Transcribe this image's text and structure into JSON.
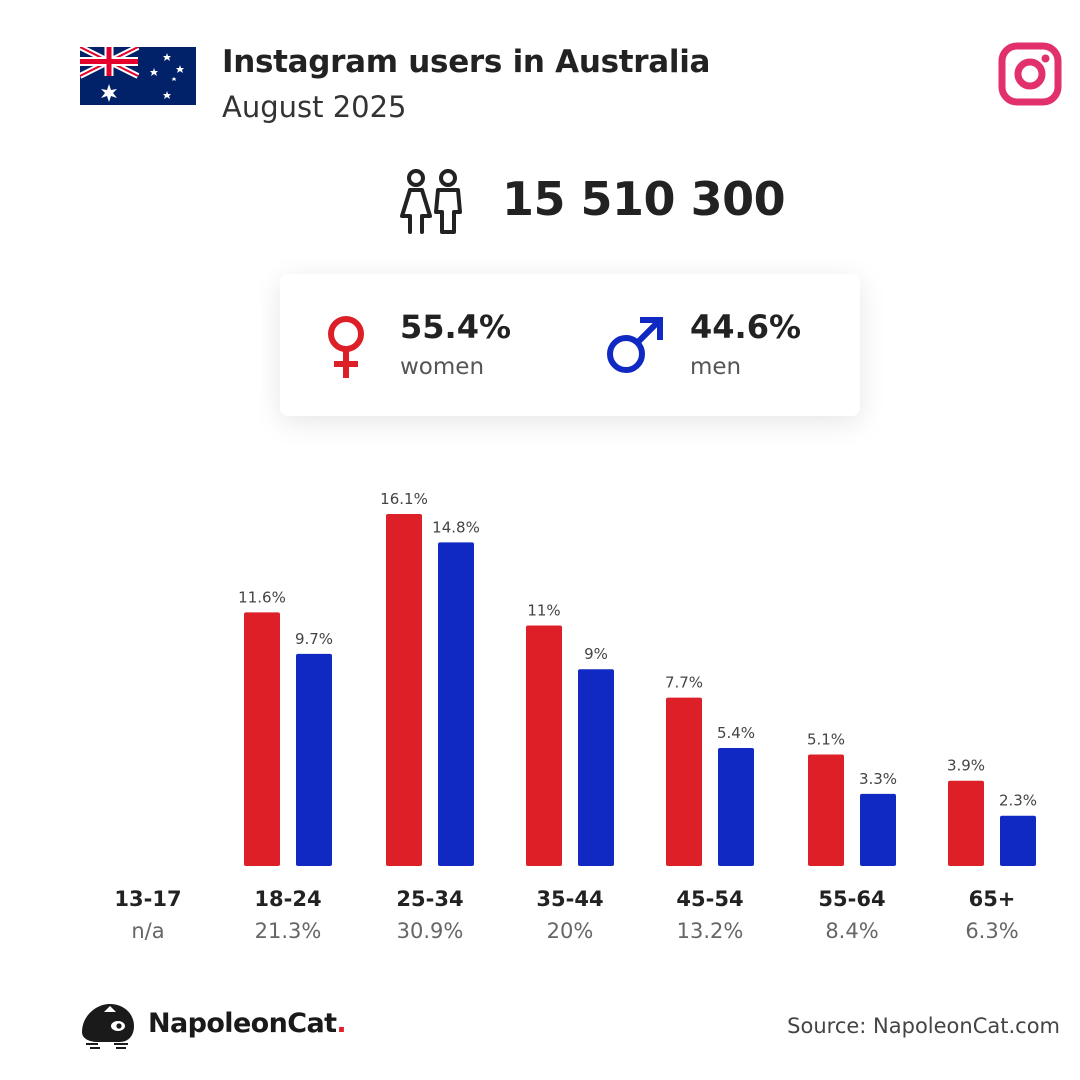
{
  "header": {
    "title": "Instagram users in Australia",
    "subtitle": "August 2025"
  },
  "icons": {
    "flag": "australia-flag-icon",
    "platform": "instagram-icon",
    "users": "users-icon",
    "female": "female-symbol-icon",
    "male": "male-symbol-icon",
    "brand": "napoleoncat-logo-icon"
  },
  "colors": {
    "women": "#dd2028",
    "men": "#1029c2",
    "instagram": "#e1306c"
  },
  "total_users": "15 510 300",
  "gender": {
    "women": {
      "percent": "55.4%",
      "label": "women"
    },
    "men": {
      "percent": "44.6%",
      "label": "men"
    }
  },
  "chart_data": {
    "type": "bar",
    "categories": [
      "13-17",
      "18-24",
      "25-34",
      "35-44",
      "45-54",
      "55-64",
      "65+"
    ],
    "category_totals": [
      "n/a",
      "21.3%",
      "30.9%",
      "20%",
      "13.2%",
      "8.4%",
      "6.3%"
    ],
    "series": [
      {
        "values": [
          null,
          11.6,
          16.1,
          11,
          7.7,
          5.1,
          3.9
        ],
        "labels": [
          "",
          "11.6%",
          "16.1%",
          "11%",
          "7.7%",
          "5.1%",
          "3.9%"
        ],
        "color": "#dd2028"
      },
      {
        "values": [
          null,
          9.7,
          14.8,
          9,
          5.4,
          3.3,
          2.3
        ],
        "labels": [
          "",
          "9.7%",
          "14.8%",
          "9%",
          "5.4%",
          "3.3%",
          "2.3%"
        ],
        "color": "#1029c2"
      }
    ],
    "ylim": [
      0,
      16.1
    ],
    "grid": false,
    "legend": "none"
  },
  "footer": {
    "brand_name": "NapoleonCat",
    "brand_dot": ".",
    "source": "Source: NapoleonCat.com"
  }
}
